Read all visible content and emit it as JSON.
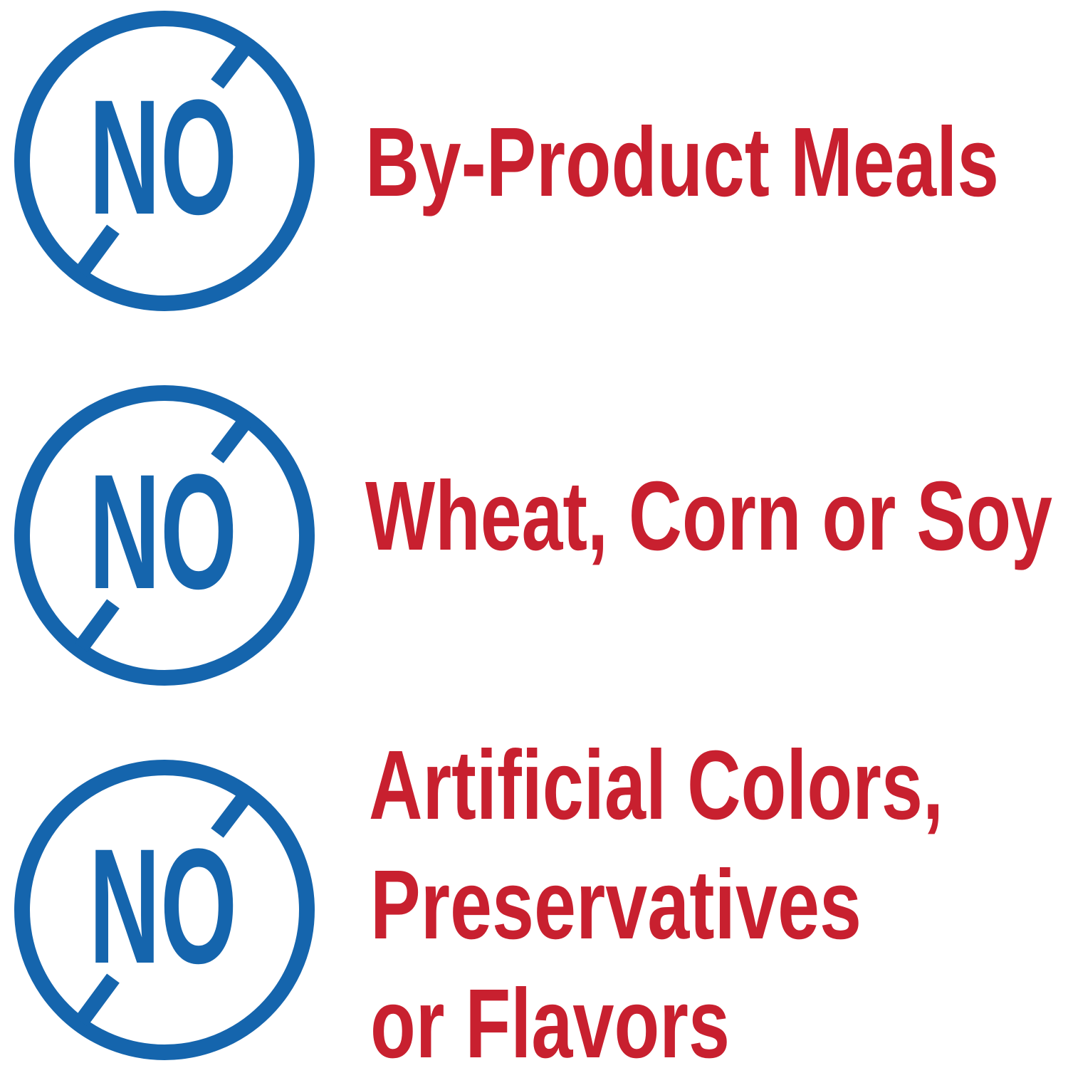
{
  "colors": {
    "icon_blue": "#1565ad",
    "text_red": "#c8202f",
    "background": "#ffffff"
  },
  "items": [
    {
      "icon": "no-circle-slash-icon",
      "badge": "NO",
      "lines": [
        "By-Product Meals"
      ]
    },
    {
      "icon": "no-circle-slash-icon",
      "badge": "NO",
      "lines": [
        "Wheat, Corn or Soy"
      ]
    },
    {
      "icon": "no-circle-slash-icon",
      "badge": "NO",
      "lines": [
        "Artificial Colors,",
        "Preservatives",
        "or Flavors"
      ]
    }
  ]
}
